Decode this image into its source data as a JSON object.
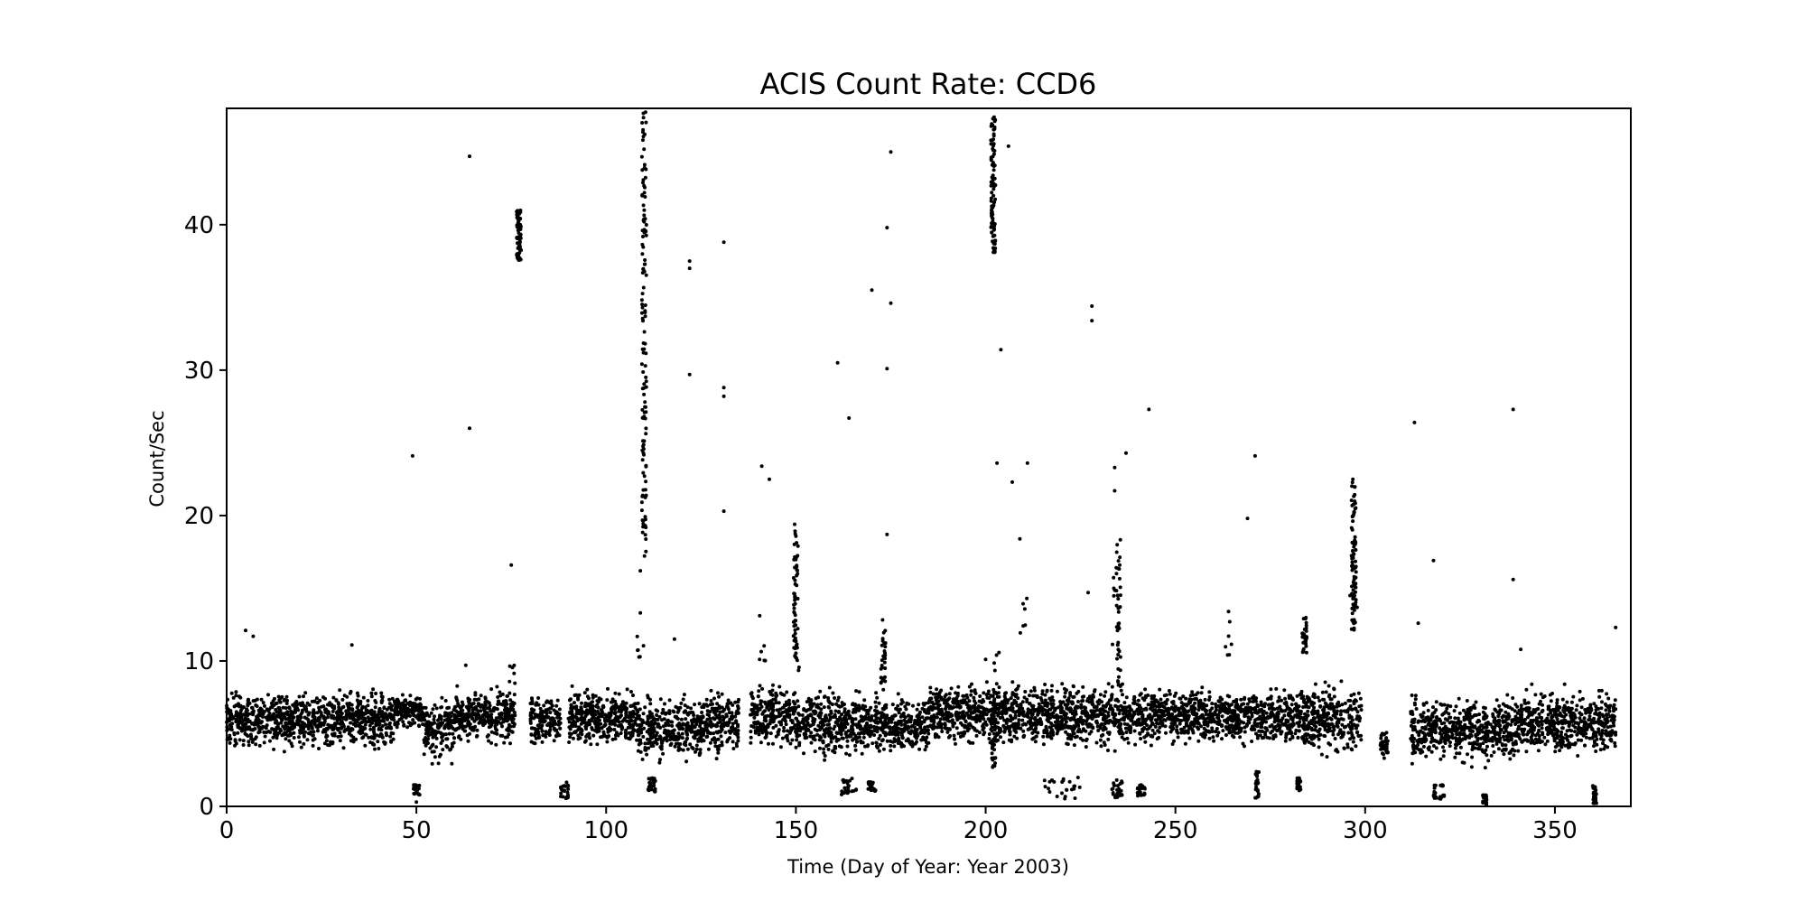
{
  "chart_data": {
    "type": "scatter",
    "title": "ACIS Count Rate: CCD6",
    "xlabel": "Time (Day of Year: Year 2003)",
    "ylabel": "Count/Sec",
    "xlim": [
      0,
      370
    ],
    "ylim": [
      0,
      48
    ],
    "xticks": [
      0,
      50,
      100,
      150,
      200,
      250,
      300,
      350
    ],
    "yticks": [
      0,
      10,
      20,
      30,
      40
    ],
    "grid": false,
    "marker_color": "#000000",
    "baseline_segments": [
      {
        "x": [
          0,
          44
        ],
        "y": [
          3.5,
          8.5
        ]
      },
      {
        "x": [
          44,
          52
        ],
        "y": [
          5.0,
          8.0
        ]
      },
      {
        "x": [
          52,
          60
        ],
        "y": [
          2.5,
          8.0
        ]
      },
      {
        "x": [
          60,
          76
        ],
        "y": [
          4.0,
          8.5
        ]
      },
      {
        "x": [
          80,
          88
        ],
        "y": [
          3.8,
          8.0
        ]
      },
      {
        "x": [
          90,
          108
        ],
        "y": [
          3.8,
          8.5
        ]
      },
      {
        "x": [
          108,
          125
        ],
        "y": [
          2.5,
          8.0
        ]
      },
      {
        "x": [
          125,
          135
        ],
        "y": [
          3.0,
          8.5
        ]
      },
      {
        "x": [
          138,
          150
        ],
        "y": [
          3.5,
          9.0
        ]
      },
      {
        "x": [
          150,
          172
        ],
        "y": [
          3.0,
          8.5
        ]
      },
      {
        "x": [
          172,
          185
        ],
        "y": [
          3.0,
          8.0
        ]
      },
      {
        "x": [
          185,
          212
        ],
        "y": [
          3.8,
          9.0
        ]
      },
      {
        "x": [
          212,
          245
        ],
        "y": [
          3.5,
          9.0
        ]
      },
      {
        "x": [
          245,
          280
        ],
        "y": [
          3.8,
          8.5
        ]
      },
      {
        "x": [
          280,
          299
        ],
        "y": [
          3.0,
          9.0
        ]
      },
      {
        "x": [
          304,
          306
        ],
        "y": [
          3.0,
          5.5
        ]
      },
      {
        "x": [
          312,
          340
        ],
        "y": [
          2.5,
          8.0
        ]
      },
      {
        "x": [
          340,
          366
        ],
        "y": [
          3.0,
          8.5
        ]
      }
    ],
    "low_clusters": [
      {
        "x": [
          49,
          51
        ],
        "y": [
          0.8,
          1.5
        ]
      },
      {
        "x": [
          88,
          90
        ],
        "y": [
          0.5,
          1.8
        ]
      },
      {
        "x": [
          111,
          113
        ],
        "y": [
          1.0,
          2.0
        ]
      },
      {
        "x": [
          162,
          166
        ],
        "y": [
          0.8,
          2.0
        ]
      },
      {
        "x": [
          169,
          171
        ],
        "y": [
          1.0,
          1.7
        ]
      },
      {
        "x": [
          215,
          226
        ],
        "y": [
          0.5,
          2.0
        ]
      },
      {
        "x": [
          233,
          236
        ],
        "y": [
          0.5,
          2.0
        ]
      },
      {
        "x": [
          240,
          242
        ],
        "y": [
          0.7,
          1.5
        ]
      },
      {
        "x": [
          271,
          272
        ],
        "y": [
          0.4,
          2.5
        ]
      },
      {
        "x": [
          282,
          283
        ],
        "y": [
          1.0,
          2.0
        ]
      },
      {
        "x": [
          318,
          321
        ],
        "y": [
          0.5,
          1.5
        ]
      },
      {
        "x": [
          331,
          332
        ],
        "y": [
          0.1,
          0.8
        ]
      },
      {
        "x": [
          360,
          361
        ],
        "y": [
          0.2,
          1.5
        ]
      }
    ],
    "flares": [
      {
        "x": 77,
        "y": [
          37.5,
          41.0
        ],
        "n": 80
      },
      {
        "x": 110,
        "y": [
          17.0,
          48.0
        ],
        "n": 130
      },
      {
        "x": 150,
        "y": [
          10.0,
          19.5
        ],
        "n": 60
      },
      {
        "x": 173,
        "y": [
          8.0,
          12.0
        ],
        "n": 25
      },
      {
        "x": 202,
        "y": [
          38.0,
          47.5
        ],
        "n": 90
      },
      {
        "x": 202,
        "y": [
          2.5,
          8.0
        ],
        "n": 40
      },
      {
        "x": 235,
        "y": [
          8.0,
          18.5
        ],
        "n": 40
      },
      {
        "x": 284,
        "y": [
          10.5,
          13.0
        ],
        "n": 30
      },
      {
        "x": 297,
        "y": [
          12.0,
          22.5
        ],
        "n": 90
      }
    ],
    "outliers": {
      "x": [
        5,
        7,
        33,
        49,
        50,
        63,
        64,
        64,
        75,
        109,
        109,
        118,
        122,
        122,
        122,
        131,
        131,
        131,
        131,
        141,
        143,
        161,
        164,
        170,
        174,
        174,
        174,
        175,
        175,
        200,
        203,
        204,
        206,
        207,
        209,
        211,
        227,
        228,
        228,
        234,
        234,
        237,
        243,
        264,
        269,
        271,
        313,
        314,
        318,
        339,
        339,
        341,
        366
      ],
      "y": [
        12.1,
        11.7,
        11.1,
        24.1,
        0.3,
        9.7,
        44.7,
        26.0,
        16.6,
        16.2,
        13.3,
        11.5,
        37.5,
        37.0,
        29.7,
        38.8,
        28.8,
        28.2,
        20.3,
        23.4,
        22.5,
        30.5,
        26.7,
        35.5,
        39.8,
        30.1,
        18.7,
        45.0,
        34.6,
        10.1,
        23.6,
        31.4,
        45.4,
        22.3,
        18.4,
        23.6,
        14.7,
        34.4,
        33.4,
        23.3,
        21.7,
        24.3,
        27.3,
        13.4,
        19.8,
        24.1,
        26.4,
        12.6,
        16.9,
        27.3,
        15.6,
        10.8,
        12.3
      ]
    },
    "sparse_upper_x": [
      75,
      109,
      141,
      150,
      173,
      203,
      210,
      234,
      264,
      297
    ],
    "sparse_upper_y": [
      [
        8,
        10
      ],
      [
        9,
        12
      ],
      [
        9,
        14
      ],
      [
        9,
        12
      ],
      [
        10,
        13
      ],
      [
        8,
        11
      ],
      [
        11,
        15
      ],
      [
        11,
        16
      ],
      [
        10,
        13
      ],
      [
        12,
        16
      ]
    ]
  }
}
